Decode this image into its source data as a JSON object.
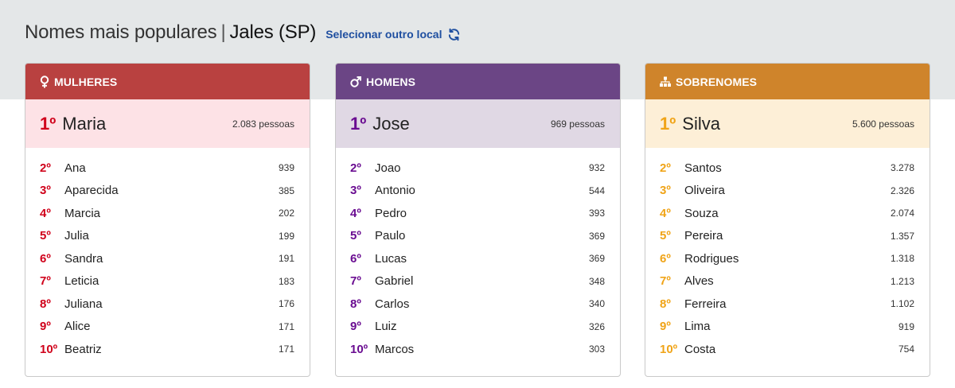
{
  "header": {
    "title": "Nomes mais populares",
    "separator": "|",
    "city": "Jales (SP)",
    "change_location": "Selecionar outro local"
  },
  "colors": {
    "women_header": "#b94140",
    "women_accent": "#d0021b",
    "women_top_bg": "#fde2e6",
    "men_header": "#6b4585",
    "men_accent": "#6a0d91",
    "men_top_bg": "#e0d8e4",
    "surnames_header": "#cf842b",
    "surnames_accent": "#f0a418",
    "surnames_top_bg": "#fdefd7"
  },
  "cards": [
    {
      "key": "women",
      "icon": "female-symbol-icon",
      "label": "MULHERES",
      "top": {
        "rank": "1º",
        "name": "Maria",
        "count": "2.083 pessoas"
      },
      "items": [
        {
          "rank": "2º",
          "name": "Ana",
          "count": "939"
        },
        {
          "rank": "3º",
          "name": "Aparecida",
          "count": "385"
        },
        {
          "rank": "4º",
          "name": "Marcia",
          "count": "202"
        },
        {
          "rank": "5º",
          "name": "Julia",
          "count": "199"
        },
        {
          "rank": "6º",
          "name": "Sandra",
          "count": "191"
        },
        {
          "rank": "7º",
          "name": "Leticia",
          "count": "183"
        },
        {
          "rank": "8º",
          "name": "Juliana",
          "count": "176"
        },
        {
          "rank": "9º",
          "name": "Alice",
          "count": "171"
        },
        {
          "rank": "10º",
          "name": "Beatriz",
          "count": "171"
        }
      ]
    },
    {
      "key": "men",
      "icon": "male-symbol-icon",
      "label": "HOMENS",
      "top": {
        "rank": "1º",
        "name": "Jose",
        "count": "969 pessoas"
      },
      "items": [
        {
          "rank": "2º",
          "name": "Joao",
          "count": "932"
        },
        {
          "rank": "3º",
          "name": "Antonio",
          "count": "544"
        },
        {
          "rank": "4º",
          "name": "Pedro",
          "count": "393"
        },
        {
          "rank": "5º",
          "name": "Paulo",
          "count": "369"
        },
        {
          "rank": "6º",
          "name": "Lucas",
          "count": "369"
        },
        {
          "rank": "7º",
          "name": "Gabriel",
          "count": "348"
        },
        {
          "rank": "8º",
          "name": "Carlos",
          "count": "340"
        },
        {
          "rank": "9º",
          "name": "Luiz",
          "count": "326"
        },
        {
          "rank": "10º",
          "name": "Marcos",
          "count": "303"
        }
      ]
    },
    {
      "key": "surnames",
      "icon": "family-tree-icon",
      "label": "SOBRENOMES",
      "top": {
        "rank": "1º",
        "name": "Silva",
        "count": "5.600 pessoas"
      },
      "items": [
        {
          "rank": "2º",
          "name": "Santos",
          "count": "3.278"
        },
        {
          "rank": "3º",
          "name": "Oliveira",
          "count": "2.326"
        },
        {
          "rank": "4º",
          "name": "Souza",
          "count": "2.074"
        },
        {
          "rank": "5º",
          "name": "Pereira",
          "count": "1.357"
        },
        {
          "rank": "6º",
          "name": "Rodrigues",
          "count": "1.318"
        },
        {
          "rank": "7º",
          "name": "Alves",
          "count": "1.213"
        },
        {
          "rank": "8º",
          "name": "Ferreira",
          "count": "1.102"
        },
        {
          "rank": "9º",
          "name": "Lima",
          "count": "919"
        },
        {
          "rank": "10º",
          "name": "Costa",
          "count": "754"
        }
      ]
    }
  ]
}
